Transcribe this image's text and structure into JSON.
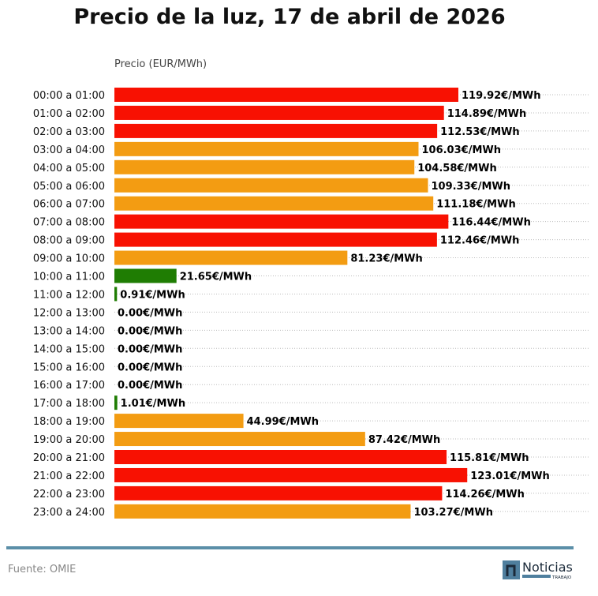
{
  "chart_data": {
    "type": "bar",
    "orientation": "horizontal",
    "title": "Precio de la luz, 17 de abril de 2026",
    "ylabel": "Precio (EUR/MWh)",
    "unit_suffix": "€/MWh",
    "grid": "dotted horizontal",
    "categories": [
      "00:00 a 01:00",
      "01:00 a 02:00",
      "02:00 a 03:00",
      "03:00 a 04:00",
      "04:00 a 05:00",
      "05:00 a 06:00",
      "06:00 a 07:00",
      "07:00 a 08:00",
      "08:00 a 09:00",
      "09:00 a 10:00",
      "10:00 a 11:00",
      "11:00 a 12:00",
      "12:00 a 13:00",
      "13:00 a 14:00",
      "14:00 a 15:00",
      "15:00 a 16:00",
      "16:00 a 17:00",
      "17:00 a 18:00",
      "18:00 a 19:00",
      "19:00 a 20:00",
      "20:00 a 21:00",
      "21:00 a 22:00",
      "22:00 a 23:00",
      "23:00 a 24:00"
    ],
    "values": [
      119.92,
      114.89,
      112.53,
      106.03,
      104.58,
      109.33,
      111.18,
      116.44,
      112.46,
      81.23,
      21.65,
      0.91,
      0,
      0,
      0,
      0,
      0,
      1.01,
      44.99,
      87.42,
      115.81,
      123.01,
      114.26,
      103.27
    ],
    "levels": [
      "high",
      "high",
      "high",
      "mid",
      "mid",
      "mid",
      "mid",
      "high",
      "high",
      "mid",
      "low",
      "low",
      "low",
      "low",
      "low",
      "low",
      "low",
      "low",
      "mid",
      "mid",
      "high",
      "high",
      "high",
      "mid"
    ],
    "colors": {
      "high": "#f81102",
      "mid": "#f39c12",
      "low": "#1f7d03"
    }
  },
  "footer": {
    "source": "Fuente: OMIE",
    "logo_text": "Noticias",
    "logo_sub": "TRABAJO"
  }
}
